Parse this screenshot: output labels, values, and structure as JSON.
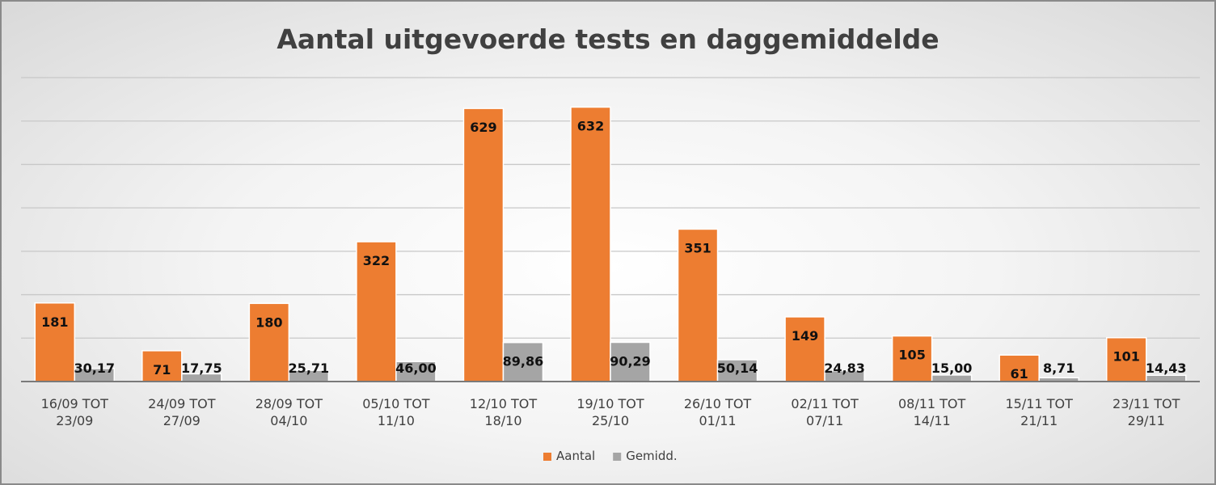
{
  "chart_data": {
    "type": "bar",
    "title": "Aantal uitgevoerde tests en daggemiddelde",
    "xlabel": "",
    "ylabel": "",
    "ylim": [
      0,
      700
    ],
    "y_axis_labels_visible": false,
    "grid": true,
    "legend_position": "bottom",
    "categories": [
      [
        "16/09 TOT",
        "23/09"
      ],
      [
        "24/09 TOT",
        "27/09"
      ],
      [
        "28/09 TOT",
        "04/10"
      ],
      [
        "05/10 TOT",
        "11/10"
      ],
      [
        "12/10 TOT",
        "18/10"
      ],
      [
        "19/10 TOT",
        "25/10"
      ],
      [
        "26/10 TOT",
        "01/11"
      ],
      [
        "02/11 TOT",
        "07/11"
      ],
      [
        "08/11 TOT",
        "14/11"
      ],
      [
        "15/11 TOT",
        "21/11"
      ],
      [
        "23/11 TOT",
        "29/11"
      ]
    ],
    "series": [
      {
        "name": "Aantal",
        "color": "#ED7D31",
        "values": [
          181,
          71,
          180,
          322,
          629,
          632,
          351,
          149,
          105,
          61,
          101
        ],
        "labels": [
          "181",
          "71",
          "180",
          "322",
          "629",
          "632",
          "351",
          "149",
          "105",
          "61",
          "101"
        ]
      },
      {
        "name": "Gemidd.",
        "color": "#A5A5A5",
        "values": [
          30.17,
          17.75,
          25.71,
          46.0,
          89.86,
          90.29,
          50.14,
          24.83,
          15.0,
          8.71,
          14.43
        ],
        "labels": [
          "30,17",
          "17,75",
          "25,71",
          "46,00",
          "89,86",
          "90,29",
          "50,14",
          "24,83",
          "15,00",
          "8,71",
          "14,43"
        ]
      }
    ]
  }
}
